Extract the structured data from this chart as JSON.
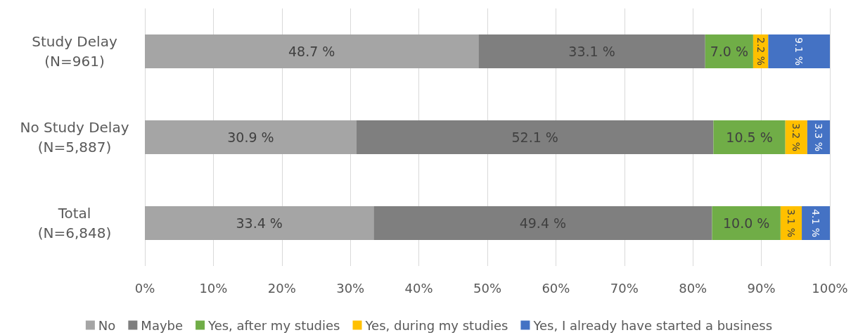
{
  "chart_data": {
    "type": "bar",
    "orientation": "horizontal",
    "stacked": true,
    "categories": [
      "Study Delay\n(N=961)",
      "No Study Delay\n(N=5,887)",
      "Total\n(N=6,848)"
    ],
    "series": [
      {
        "name": "No",
        "color": "#a5a5a5",
        "values": [
          48.7,
          30.9,
          33.4
        ],
        "value_labels": [
          "48.7 %",
          "30.9 %",
          "33.4 %"
        ]
      },
      {
        "name": "Maybe",
        "color": "#7f7f7f",
        "values": [
          33.1,
          52.1,
          49.4
        ],
        "value_labels": [
          "33.1 %",
          "52.1 %",
          "49.4 %"
        ]
      },
      {
        "name": "Yes, after my studies",
        "color": "#70ad47",
        "values": [
          7.0,
          10.5,
          10.0
        ],
        "value_labels": [
          "7.0 %",
          "10.5 %",
          "10.0 %"
        ]
      },
      {
        "name": "Yes, during my studies",
        "color": "#ffc000",
        "values": [
          2.2,
          3.2,
          3.1
        ],
        "value_labels": [
          "2.2 %",
          "3.2 %",
          "3.1 %"
        ]
      },
      {
        "name": "Yes, I already have started a business",
        "color": "#4472c4",
        "values": [
          9.1,
          3.3,
          4.1
        ],
        "value_labels": [
          "9.1 %",
          "3.3 %",
          "4.1 %"
        ]
      }
    ],
    "xlim": [
      0,
      100
    ],
    "xticks": [
      {
        "value": 0,
        "label": "0%"
      },
      {
        "value": 10,
        "label": "10%"
      },
      {
        "value": 20,
        "label": "20%"
      },
      {
        "value": 30,
        "label": "30%"
      },
      {
        "value": 40,
        "label": "40%"
      },
      {
        "value": 50,
        "label": "50%"
      },
      {
        "value": 60,
        "label": "60%"
      },
      {
        "value": 70,
        "label": "70%"
      },
      {
        "value": 80,
        "label": "80%"
      },
      {
        "value": 90,
        "label": "90%"
      },
      {
        "value": 100,
        "label": "100%"
      }
    ],
    "grid": "x",
    "legend": "bottom"
  }
}
